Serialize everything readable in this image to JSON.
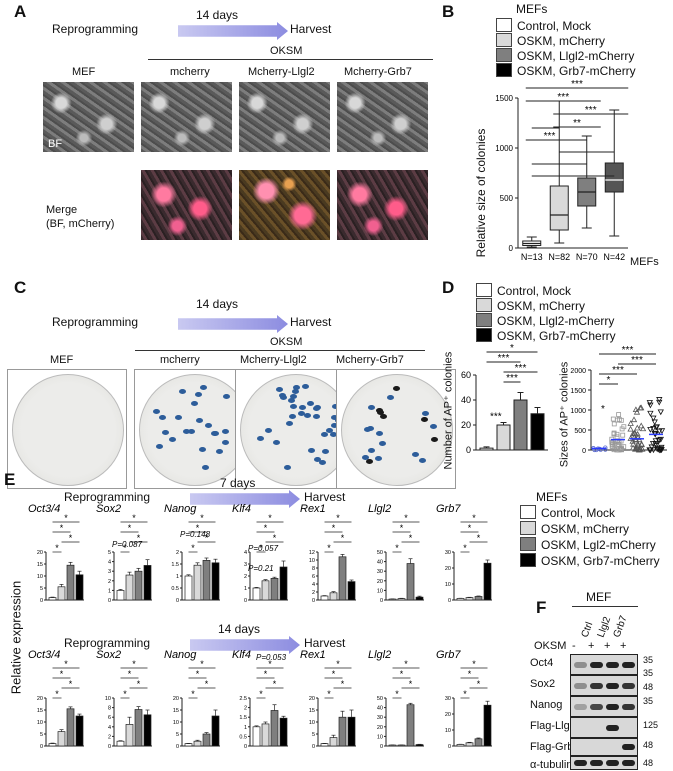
{
  "panels": {
    "a": "A",
    "b": "B",
    "c": "C",
    "d": "D",
    "e": "E",
    "f": "F"
  },
  "a": {
    "reprogramming": "Reprogramming",
    "days": "14 days",
    "harvest": "Harvest",
    "oksm": "OKSM",
    "cols": [
      "MEF",
      "mcherry",
      "Mcherry-Llgl2",
      "Mcherry-Grb7"
    ],
    "bf": "BF",
    "merge1": "Merge",
    "merge2": "(BF, mCherry)"
  },
  "b": {
    "legend_title": "MEFs",
    "legend": [
      "Control, Mock",
      "OSKM, mCherry",
      "OSKM, Llgl2-mCherry",
      "OSKM, Grb7-mCherry"
    ],
    "colors": [
      "#ffffff",
      "#d9d9d9",
      "#7f7f7f",
      "#000000"
    ],
    "xfoot": "MEFs",
    "stars": [
      "***",
      "**",
      "***",
      "***",
      "***"
    ]
  },
  "c": {
    "reprogramming": "Reprogramming",
    "days": "14 days",
    "harvest": "Harvest",
    "oksm": "OKSM",
    "cols": [
      "MEF",
      "mcherry",
      "Mcherry-Llgl2",
      "Mcherry-Grb7"
    ]
  },
  "d": {
    "legend": [
      "Control, Mock",
      "OSKM, mCherry",
      "OSKM, Llgl2-mCherry",
      "OSKM, Grb7-mCherry"
    ],
    "left_stars": [
      "*",
      "***",
      "***",
      "***",
      "***"
    ],
    "right_stars": [
      "***",
      "*",
      "***",
      "***",
      "*"
    ]
  },
  "e": {
    "reprogramming": "Reprogramming",
    "days_top": "7 days",
    "days_bottom": "14 days",
    "harvest": "Harvest",
    "ylabel": "Relative expression",
    "legend_title": "MEFs",
    "legend": [
      "Control, Mock",
      "OSKM, mCherry",
      "OSKM, Lgl2-mCherry",
      "OSKM, Grb7-mCherry"
    ],
    "top_genes": [
      "Oct3/4",
      "Sox2",
      "Nanog",
      "Klf4",
      "Rex1",
      "Llgl2",
      "Grb7"
    ],
    "bottom_genes": [
      "Oct3/4",
      "Sox2",
      "Nanog",
      "Klf4",
      "Rex1",
      "Llgl2",
      "Grb7"
    ],
    "top_pvals": [
      "P=0.087",
      "P=0.148",
      "P=0.057",
      "P=0.21"
    ],
    "bottom_pval": "P=0.053"
  },
  "f": {
    "title": "MEF",
    "oksm": "OKSM",
    "lanes": [
      "Ctrl",
      "Llgl2",
      "Grb7"
    ],
    "signs": [
      "-",
      "+",
      "+",
      "+"
    ],
    "rows": [
      "Oct4",
      "Sox2",
      "Nanog",
      "Flag-Llgl2",
      "Flag-Grb7",
      "α-tubulin"
    ],
    "mw": [
      "35",
      "35",
      "48",
      "35",
      "125",
      "48",
      "48"
    ]
  },
  "chart_data": [
    {
      "type": "box",
      "title": "",
      "xlabel": "",
      "ylabel": "Relative size of colonies",
      "ylim": [
        0,
        1500
      ],
      "yticks": [
        0,
        500,
        1000,
        1500
      ],
      "categories": [
        "N=13",
        "N=82",
        "N=70",
        "N=42"
      ],
      "series": [
        {
          "name": "Control, Mock",
          "min": 10,
          "q1": 25,
          "median": 45,
          "q3": 70,
          "max": 110
        },
        {
          "name": "OSKM, mCherry",
          "min": 50,
          "q1": 180,
          "median": 330,
          "q3": 620,
          "max": 1470
        },
        {
          "name": "OSKM, Llgl2-mCherry",
          "min": 200,
          "q1": 420,
          "median": 560,
          "q3": 700,
          "max": 1120
        },
        {
          "name": "OSKM, Grb7-mCherry",
          "min": 120,
          "q1": 560,
          "median": 680,
          "q3": 850,
          "max": 1380
        }
      ]
    },
    {
      "type": "bar",
      "title": "",
      "xlabel": "",
      "ylabel": "Number of AP⁺ colonies",
      "ylim": [
        0,
        60
      ],
      "yticks": [
        0,
        20,
        40,
        60
      ],
      "categories": [
        "Control, Mock",
        "OSKM, mCherry",
        "OSKM, Llgl2-mCherry",
        "OSKM, Grb7-mCherry"
      ],
      "values": [
        1.5,
        20,
        40,
        29
      ],
      "errors": [
        1,
        2,
        6,
        5
      ]
    },
    {
      "type": "scatter",
      "title": "",
      "xlabel": "",
      "ylabel": "Sizes of AP⁺ colonies",
      "ylim": [
        0,
        2000
      ],
      "yticks": [
        0,
        500,
        1000,
        1500,
        2000
      ],
      "categories": [
        "Control, Mock",
        "OSKM, mCherry",
        "OSKM, Llgl2-mCherry",
        "OSKM, Grb7-mCherry"
      ],
      "means": [
        40,
        260,
        280,
        390
      ]
    },
    {
      "type": "bar",
      "title": "Relative expression, 7 days",
      "series_names": [
        "Control, Mock",
        "OSKM, mCherry",
        "OSKM, Llgl2-mCherry",
        "OSKM, Grb7-mCherry"
      ],
      "panels": [
        {
          "gene": "Oct3/4",
          "ymax": 20,
          "yticks": [
            0,
            5,
            10,
            15,
            20
          ],
          "values": [
            1,
            5.5,
            14.5,
            10.5
          ],
          "errors": [
            0.2,
            1,
            1.2,
            1.5
          ]
        },
        {
          "gene": "Sox2",
          "ymax": 5,
          "yticks": [
            0,
            1,
            2,
            3,
            4,
            5
          ],
          "values": [
            1,
            2.6,
            3,
            3.6
          ],
          "errors": [
            0.1,
            0.3,
            0.3,
            0.6
          ]
        },
        {
          "gene": "Nanog",
          "ymax": 2.0,
          "yticks": [
            0,
            0.5,
            1.0,
            1.5,
            2.0
          ],
          "values": [
            1,
            1.45,
            1.65,
            1.55
          ],
          "errors": [
            0.05,
            0.1,
            0.1,
            0.15
          ]
        },
        {
          "gene": "Klf4",
          "ymax": 4,
          "yticks": [
            0,
            1,
            2,
            3,
            4
          ],
          "values": [
            1,
            1.6,
            1.8,
            2.75
          ],
          "errors": [
            0.05,
            0.1,
            0.1,
            0.5
          ]
        },
        {
          "gene": "Rex1",
          "ymax": 12,
          "yticks": [
            0,
            2,
            4,
            6,
            8,
            10,
            12
          ],
          "values": [
            1,
            1.8,
            10.8,
            4.6
          ],
          "errors": [
            0.1,
            0.3,
            0.6,
            0.4
          ]
        },
        {
          "gene": "Llgl2",
          "ymax": 50,
          "yticks": [
            0,
            10,
            20,
            30,
            40,
            50
          ],
          "values": [
            1,
            1.5,
            38,
            3
          ],
          "errors": [
            0.2,
            0.3,
            5,
            1
          ]
        },
        {
          "gene": "Grb7",
          "ymax": 30,
          "yticks": [
            0,
            10,
            20,
            30
          ],
          "values": [
            1,
            1.5,
            2.2,
            23
          ],
          "errors": [
            0.1,
            0.2,
            0.3,
            2
          ]
        }
      ]
    },
    {
      "type": "bar",
      "title": "Relative expression, 14 days",
      "series_names": [
        "Control, Mock",
        "OSKM, mCherry",
        "OSKM, Llgl2-mCherry",
        "OSKM, Grb7-mCherry"
      ],
      "panels": [
        {
          "gene": "Oct3/4",
          "ymax": 20,
          "yticks": [
            0,
            5,
            10,
            15,
            20
          ],
          "values": [
            1,
            6,
            15.5,
            12.5
          ],
          "errors": [
            0.2,
            0.8,
            0.8,
            0.8
          ]
        },
        {
          "gene": "Sox2",
          "ymax": 10,
          "yticks": [
            0,
            2,
            4,
            6,
            8,
            10
          ],
          "values": [
            1,
            4.5,
            7.6,
            6.5
          ],
          "errors": [
            0.1,
            1.5,
            0.6,
            1
          ]
        },
        {
          "gene": "Nanog",
          "ymax": 20,
          "yticks": [
            0,
            5,
            10,
            15,
            20
          ],
          "values": [
            1,
            2,
            5,
            12.5
          ],
          "errors": [
            0.1,
            0.4,
            0.6,
            2.5
          ]
        },
        {
          "gene": "Klf4",
          "ymax": 2.5,
          "yticks": [
            0,
            0.5,
            1.0,
            1.5,
            2.0,
            2.5
          ],
          "values": [
            1,
            1.15,
            1.85,
            1.45
          ],
          "errors": [
            0.05,
            0.1,
            0.3,
            0.1
          ]
        },
        {
          "gene": "Rex1",
          "ymax": 20,
          "yticks": [
            0,
            5,
            10,
            15,
            20
          ],
          "values": [
            1,
            3.5,
            12,
            12
          ],
          "errors": [
            0.1,
            1,
            2.5,
            3
          ]
        },
        {
          "gene": "Llgl2",
          "ymax": 50,
          "yticks": [
            0,
            10,
            20,
            30,
            40,
            50
          ],
          "values": [
            1,
            1,
            43,
            1.5
          ],
          "errors": [
            0.1,
            0.1,
            1.5,
            0.3
          ]
        },
        {
          "gene": "Grb7",
          "ymax": 30,
          "yticks": [
            0,
            10,
            20,
            30
          ],
          "values": [
            1,
            2,
            4.5,
            25.5
          ],
          "errors": [
            0.1,
            0.3,
            0.5,
            2.5
          ]
        }
      ]
    }
  ]
}
